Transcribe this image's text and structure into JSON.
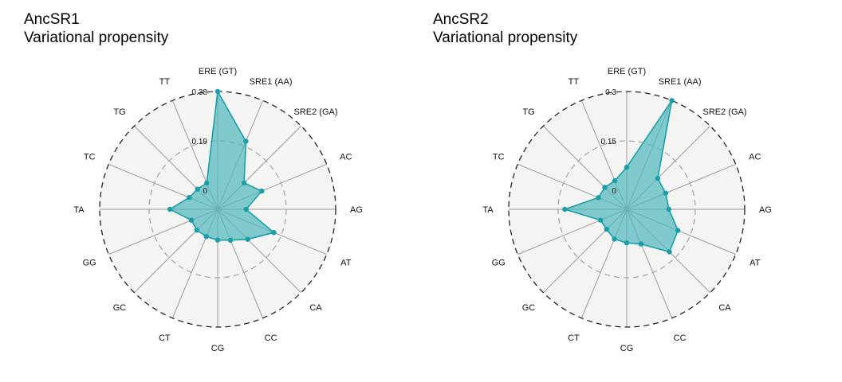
{
  "colors": {
    "series": "#1a9fa8",
    "fill": "#4fb6bc",
    "background": "#f4f4f2",
    "spoke": "#aaaaaa",
    "mid_ring": "#aaaaaa",
    "outer_ring": "#222222"
  },
  "chart_data": [
    {
      "type": "radar",
      "title": "AncSR1",
      "subtitle": "Variational propensity",
      "axes": [
        "ERE (GT)",
        "SRE1 (AA)",
        "SRE2 (GA)",
        "AC",
        "AG",
        "AT",
        "CA",
        "CC",
        "CG",
        "CT",
        "GC",
        "GG",
        "TA",
        "TC",
        "TG",
        "TT"
      ],
      "tick_labels": [
        "0",
        "0.19",
        "0.38"
      ],
      "rlim": [
        0,
        0.38
      ],
      "series": [
        {
          "values": [
            0.38,
            0.21,
            0.07,
            0.11,
            0.036,
            0.16,
            0.09,
            0.055,
            0.045,
            0.04,
            0.04,
            0.036,
            0.11,
            0.045,
            0.036,
            0.036
          ]
        }
      ]
    },
    {
      "type": "radar",
      "title": "AncSR2",
      "subtitle": "Variational propensity",
      "axes": [
        "ERE (GT)",
        "SRE1 (AA)",
        "SRE2 (GA)",
        "AC",
        "AG",
        "AT",
        "CA",
        "CC",
        "CG",
        "CT",
        "GC",
        "GG",
        "TA",
        "TC",
        "TG",
        "TT"
      ],
      "tick_labels": [
        "0",
        "0.15",
        "0.3"
      ],
      "rlim": [
        0,
        0.3
      ],
      "series": [
        {
          "values": [
            0.07,
            0.3,
            0.075,
            0.07,
            0.07,
            0.11,
            0.125,
            0.056,
            0.044,
            0.04,
            0.028,
            0.028,
            0.13,
            0.035,
            0.036,
            0.036
          ]
        }
      ]
    }
  ]
}
